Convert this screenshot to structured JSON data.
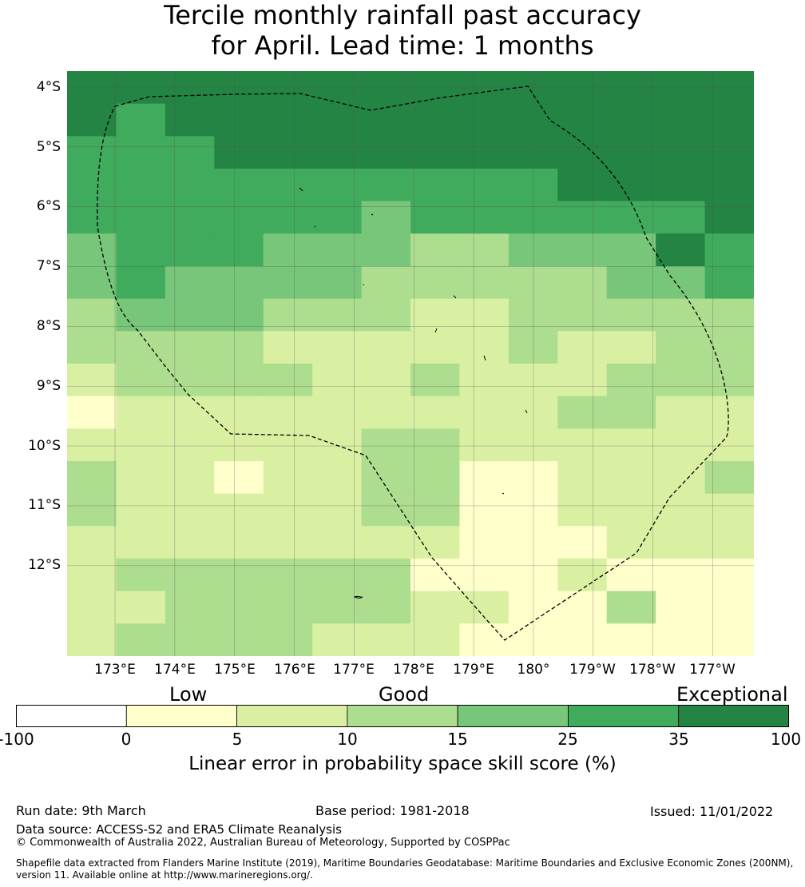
{
  "title_line1": "Tercile monthly rainfall past accuracy",
  "title_line2": "for April. Lead time: 1 months",
  "map": {
    "lat_labels": [
      "4°S",
      "5°S",
      "6°S",
      "7°S",
      "8°S",
      "9°S",
      "10°S",
      "11°S",
      "12°S"
    ],
    "lon_labels": [
      "173°E",
      "174°E",
      "175°E",
      "176°E",
      "177°E",
      "178°E",
      "179°E",
      "180°",
      "179°W",
      "178°W",
      "177°W"
    ]
  },
  "legend": {
    "categories": [
      "Low",
      "Good",
      "Exceptional"
    ],
    "ticks": [
      "-100",
      "0",
      "5",
      "10",
      "15",
      "25",
      "35",
      "100"
    ],
    "colors": [
      "#ffffff",
      "#ffffcc",
      "#d9f0a3",
      "#addd8e",
      "#78c679",
      "#41ab5d",
      "#238443"
    ],
    "label": "Linear error in probability space skill score (%)"
  },
  "footer": {
    "run_date": "Run date: 9th March",
    "base_period": "Base period: 1981-2018",
    "issued": "Issued: 11/01/2022",
    "data_source": "Data source: ACCESS-S2 and ERA5 Climate Reanalysis",
    "copyright": "© Commonwealth of Australia 2022, Australian Bureau of Meteorology, Supported by COSPPac",
    "shapefile_line1": "Shapefile data extracted from Flanders Marine Institute (2019), Maritime Boundaries Geodatabase: Maritime Boundaries and Exclusive Economic Zones (200NM),",
    "shapefile_line2": "version 11. Available online at http://www.marineregions.org/."
  },
  "grid_levels": [
    "66666666666666",
    "65666666666666",
    "55566666666666",
    "55555555556666",
    "55555545555556",
    "45554443344465",
    "45444433333445",
    "34443332233333",
    "33332222232233",
    "23333223222333",
    "12222222223322",
    "22222233222222",
    "32212233112223",
    "32222233112222",
    "22222222111222",
    "23333331112111",
    "22333332211311",
    "23333222111111"
  ]
}
